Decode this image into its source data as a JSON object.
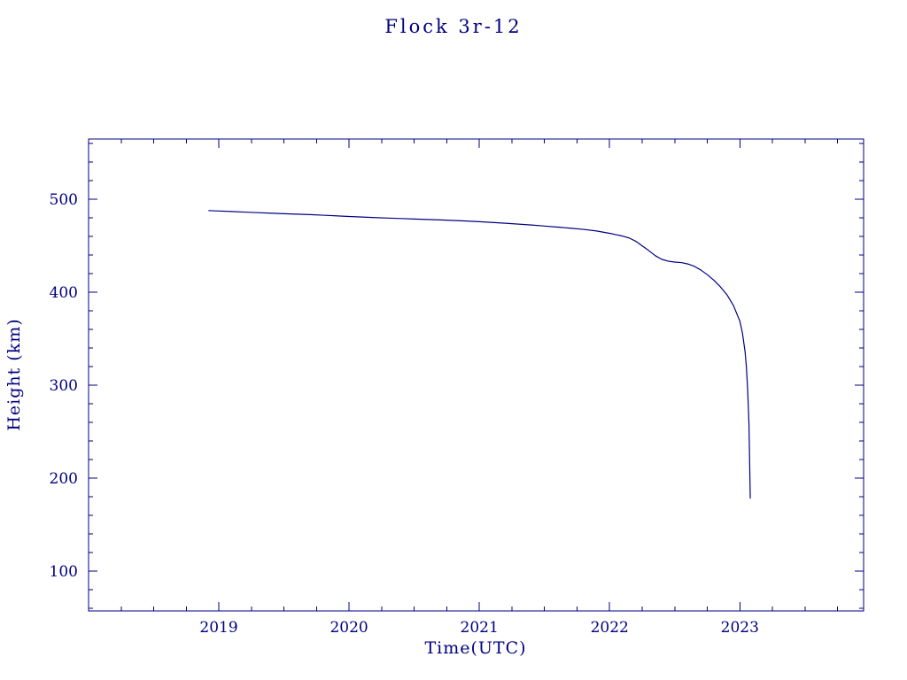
{
  "colors": {
    "accent": "#000080",
    "background": "#ffffff"
  },
  "chart_data": {
    "type": "line",
    "title": "Flock 3r-12",
    "xlabel": "Time(UTC)",
    "ylabel": "Height (km)",
    "xlim": [
      2018.0,
      2023.95
    ],
    "ylim": [
      57,
      565
    ],
    "x_ticks": [
      2019,
      2020,
      2021,
      2022,
      2023
    ],
    "y_ticks": [
      100,
      200,
      300,
      400,
      500
    ],
    "x_minor_step": 0.25,
    "y_minor_step": 20,
    "grid": false,
    "legend": "none",
    "series": [
      {
        "name": "Flock 3r-12 height",
        "x": [
          2018.92,
          2019.0,
          2019.1,
          2019.2,
          2019.3,
          2019.4,
          2019.5,
          2019.6,
          2019.7,
          2019.8,
          2019.9,
          2020.0,
          2020.1,
          2020.2,
          2020.3,
          2020.4,
          2020.5,
          2020.6,
          2020.7,
          2020.8,
          2020.9,
          2021.0,
          2021.1,
          2021.2,
          2021.3,
          2021.4,
          2021.5,
          2021.6,
          2021.7,
          2021.8,
          2021.9,
          2022.0,
          2022.05,
          2022.1,
          2022.15,
          2022.2,
          2022.25,
          2022.3,
          2022.35,
          2022.4,
          2022.45,
          2022.5,
          2022.55,
          2022.6,
          2022.65,
          2022.7,
          2022.75,
          2022.8,
          2022.85,
          2022.9,
          2022.95,
          2023.0,
          2023.02,
          2023.04,
          2023.05,
          2023.06,
          2023.07,
          2023.08
        ],
        "y": [
          488,
          487.5,
          487,
          486.3,
          485.7,
          485.2,
          484.6,
          484.1,
          483.6,
          483,
          482.3,
          481.6,
          481,
          480.4,
          479.9,
          479.4,
          478.9,
          478.4,
          477.9,
          477.3,
          476.7,
          476,
          475.2,
          474.3,
          473.4,
          472.4,
          471.3,
          470.2,
          469,
          467.7,
          466,
          463.5,
          462,
          460.5,
          458.5,
          455,
          450,
          445,
          439.5,
          435.5,
          433.5,
          432.5,
          432,
          430.5,
          428,
          424,
          419,
          413,
          406,
          397.5,
          386,
          369,
          356,
          336,
          320,
          295,
          258,
          178
        ]
      }
    ]
  }
}
